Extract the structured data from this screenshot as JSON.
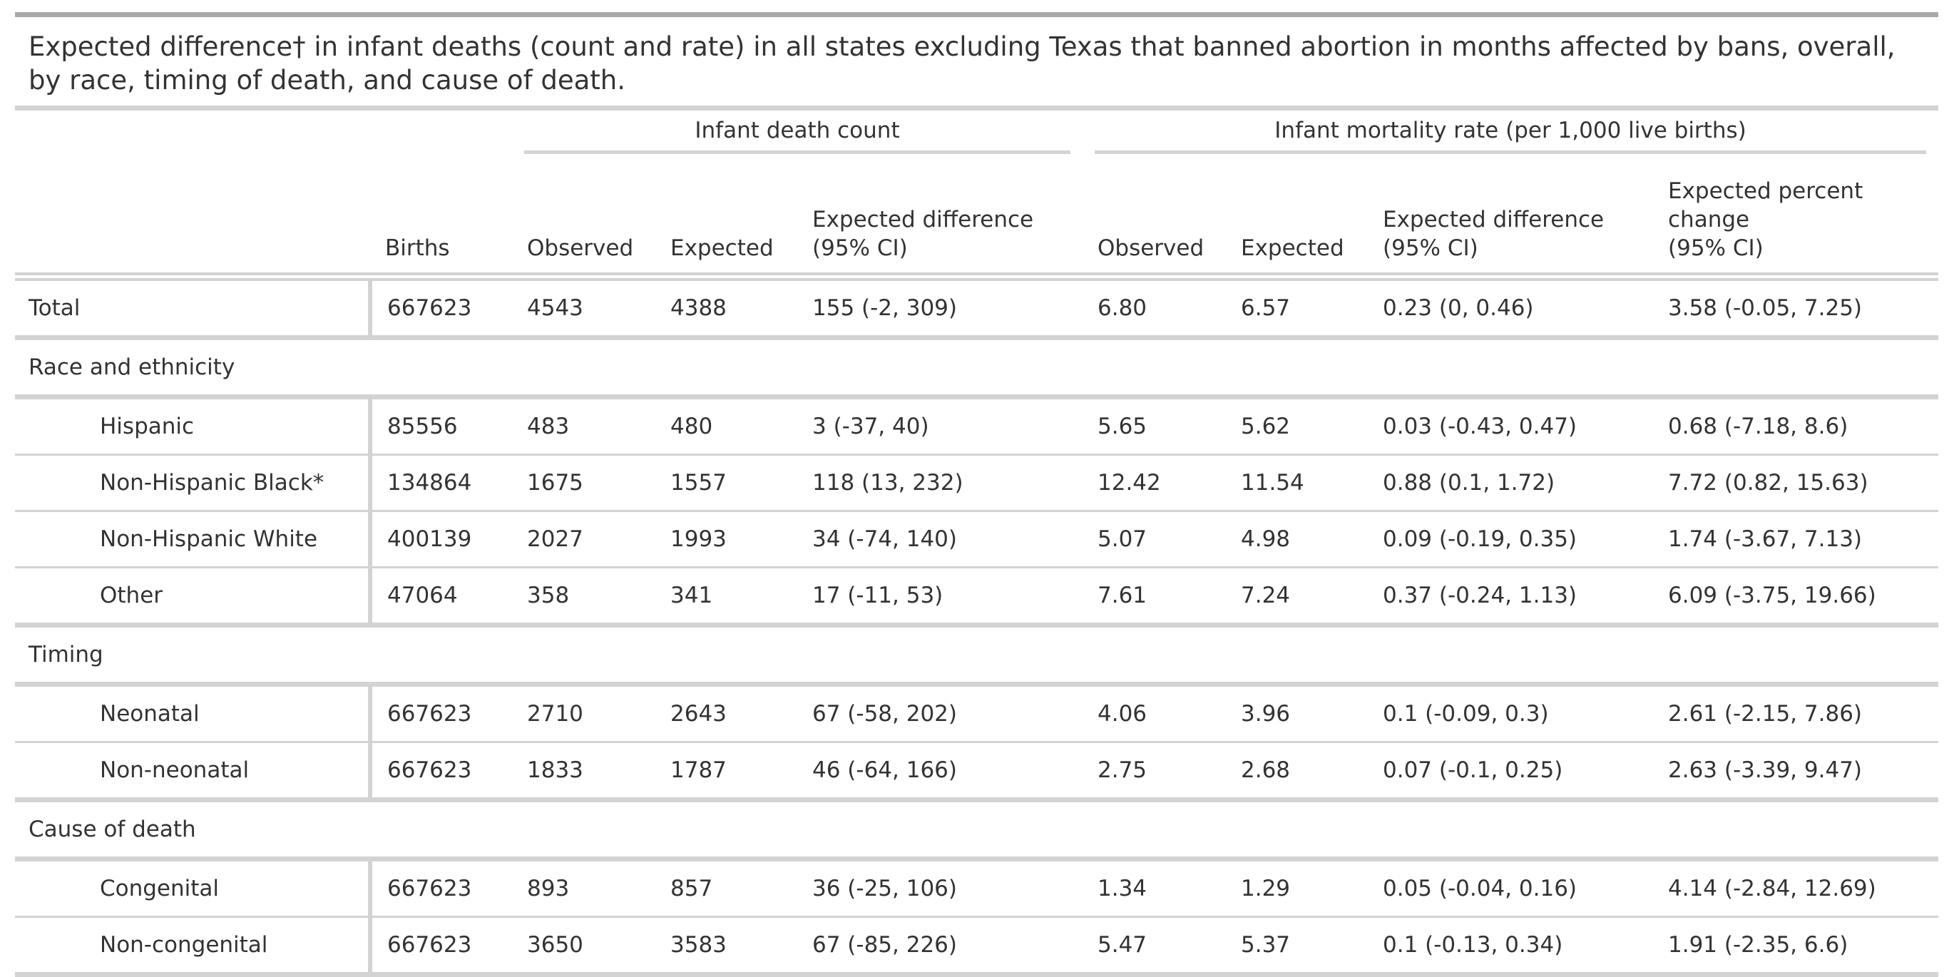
{
  "title": "Expected difference† in infant deaths (count and rate) in all states excluding Texas that banned abortion in months affected by bans, overall, by race, timing of death, and cause of death.",
  "spanners": [
    "Infant death count",
    "Infant mortality rate (per 1,000 live births)"
  ],
  "columns": [
    "Births",
    "Observed",
    "Expected",
    "Expected difference\n(95% CI)",
    "Observed",
    "Expected",
    "Expected difference\n(95% CI)",
    "Expected percent\nchange\n(95% CI)"
  ],
  "rows": [
    {
      "label": "Total",
      "cells": [
        "667623",
        "4543",
        "4388",
        "155 (-2, 309)",
        "6.80",
        "6.57",
        "0.23 (0, 0.46)",
        "3.58 (-0.05, 7.25)"
      ]
    },
    {
      "group": "Race and ethnicity"
    },
    {
      "label": "Hispanic",
      "cells": [
        "85556",
        "483",
        "480",
        "3 (-37, 40)",
        "5.65",
        "5.62",
        "0.03 (-0.43, 0.47)",
        "0.68 (-7.18, 8.6)"
      ]
    },
    {
      "label": "Non-Hispanic Black*",
      "cells": [
        "134864",
        "1675",
        "1557",
        "118 (13, 232)",
        "12.42",
        "11.54",
        "0.88 (0.1, 1.72)",
        "7.72 (0.82, 15.63)"
      ]
    },
    {
      "label": "Non-Hispanic White",
      "cells": [
        "400139",
        "2027",
        "1993",
        "34 (-74, 140)",
        "5.07",
        "4.98",
        "0.09 (-0.19, 0.35)",
        "1.74 (-3.67, 7.13)"
      ]
    },
    {
      "label": "Other",
      "cells": [
        "47064",
        "358",
        "341",
        "17 (-11, 53)",
        "7.61",
        "7.24",
        "0.37 (-0.24, 1.13)",
        "6.09 (-3.75, 19.66)"
      ]
    },
    {
      "group": "Timing"
    },
    {
      "label": "Neonatal",
      "cells": [
        "667623",
        "2710",
        "2643",
        "67 (-58, 202)",
        "4.06",
        "3.96",
        "0.1 (-0.09, 0.3)",
        "2.61 (-2.15, 7.86)"
      ]
    },
    {
      "label": "Non-neonatal",
      "cells": [
        "667623",
        "1833",
        "1787",
        "46 (-64, 166)",
        "2.75",
        "2.68",
        "0.07 (-0.1, 0.25)",
        "2.63 (-3.39, 9.47)"
      ]
    },
    {
      "group": "Cause of death"
    },
    {
      "label": "Congenital",
      "cells": [
        "667623",
        "893",
        "857",
        "36 (-25, 106)",
        "1.34",
        "1.29",
        "0.05 (-0.04, 0.16)",
        "4.14 (-2.84, 12.69)"
      ]
    },
    {
      "label": "Non-congenital",
      "cells": [
        "667623",
        "3650",
        "3583",
        "67 (-85, 226)",
        "5.47",
        "5.37",
        "0.1 (-0.13, 0.34)",
        "1.91 (-2.35, 6.6)"
      ]
    }
  ]
}
